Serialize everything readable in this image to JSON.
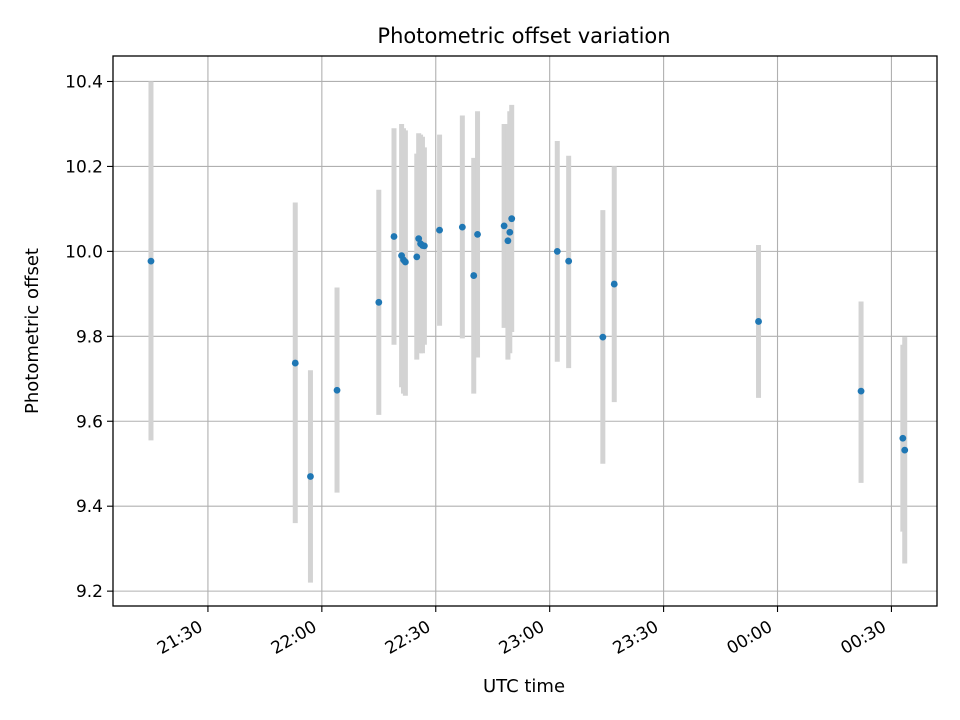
{
  "chart_data": {
    "type": "scatter",
    "title": "Photometric offset variation",
    "xlabel": "UTC time",
    "ylabel": "Photometric offset",
    "x_tick_labels": [
      "21:30",
      "22:00",
      "22:30",
      "23:00",
      "23:30",
      "00:00",
      "00:30"
    ],
    "y_tick_labels": [
      "9.2",
      "9.4",
      "9.6",
      "9.8",
      "10.0",
      "10.2",
      "10.4"
    ],
    "ylim": [
      9.165,
      10.46
    ],
    "xlim": [
      "21:05",
      "00:42"
    ],
    "grid": true,
    "point_color": "#1f77b4",
    "errorbar_color": "#d3d3d3",
    "points": [
      {
        "t": "21:15",
        "y": 9.977,
        "lo": 9.555,
        "hi": 10.4
      },
      {
        "t": "21:53",
        "y": 9.737,
        "lo": 9.36,
        "hi": 10.115
      },
      {
        "t": "21:57",
        "y": 9.47,
        "lo": 9.22,
        "hi": 9.72
      },
      {
        "t": "22:04",
        "y": 9.673,
        "lo": 9.432,
        "hi": 9.915
      },
      {
        "t": "22:15",
        "y": 9.88,
        "lo": 9.615,
        "hi": 10.145
      },
      {
        "t": "22:19",
        "y": 10.035,
        "lo": 9.78,
        "hi": 10.29
      },
      {
        "t": "22:21",
        "y": 9.99,
        "lo": 9.68,
        "hi": 10.3
      },
      {
        "t": "22:21.5",
        "y": 9.98,
        "lo": 9.665,
        "hi": 10.29
      },
      {
        "t": "22:22",
        "y": 9.975,
        "lo": 9.66,
        "hi": 10.285
      },
      {
        "t": "22:25",
        "y": 9.987,
        "lo": 9.745,
        "hi": 10.23
      },
      {
        "t": "22:25.5",
        "y": 10.03,
        "lo": 9.78,
        "hi": 10.278
      },
      {
        "t": "22:26",
        "y": 10.018,
        "lo": 9.76,
        "hi": 10.275
      },
      {
        "t": "22:26.5",
        "y": 10.014,
        "lo": 9.76,
        "hi": 10.27
      },
      {
        "t": "22:27",
        "y": 10.013,
        "lo": 9.78,
        "hi": 10.245
      },
      {
        "t": "22:31",
        "y": 10.05,
        "lo": 9.825,
        "hi": 10.275
      },
      {
        "t": "22:37",
        "y": 10.057,
        "lo": 9.795,
        "hi": 10.32
      },
      {
        "t": "22:40",
        "y": 9.943,
        "lo": 9.665,
        "hi": 10.22
      },
      {
        "t": "22:41",
        "y": 10.04,
        "lo": 9.75,
        "hi": 10.33
      },
      {
        "t": "22:48",
        "y": 10.06,
        "lo": 9.82,
        "hi": 10.3
      },
      {
        "t": "22:49",
        "y": 10.025,
        "lo": 9.745,
        "hi": 10.3
      },
      {
        "t": "22:49.5",
        "y": 10.045,
        "lo": 9.76,
        "hi": 10.33
      },
      {
        "t": "22:50",
        "y": 10.077,
        "lo": 9.81,
        "hi": 10.345
      },
      {
        "t": "23:02",
        "y": 10.0,
        "lo": 9.74,
        "hi": 10.26
      },
      {
        "t": "23:05",
        "y": 9.977,
        "lo": 9.725,
        "hi": 10.225
      },
      {
        "t": "23:14",
        "y": 9.798,
        "lo": 9.5,
        "hi": 10.097
      },
      {
        "t": "23:17",
        "y": 9.923,
        "lo": 9.645,
        "hi": 10.2
      },
      {
        "t": "23:55",
        "y": 9.835,
        "lo": 9.655,
        "hi": 10.015
      },
      {
        "t": "00:22",
        "y": 9.671,
        "lo": 9.455,
        "hi": 9.882
      },
      {
        "t": "00:33",
        "y": 9.56,
        "lo": 9.34,
        "hi": 9.78
      },
      {
        "t": "00:33.5",
        "y": 9.532,
        "lo": 9.265,
        "hi": 9.798
      }
    ]
  }
}
